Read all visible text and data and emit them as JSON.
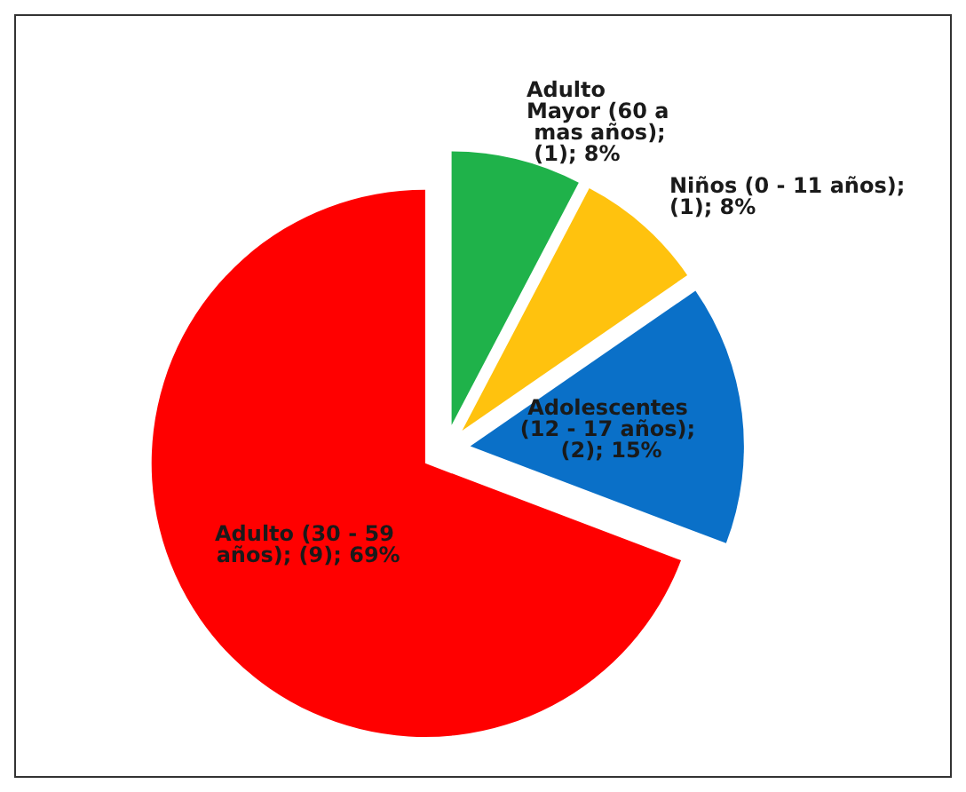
{
  "chart_data": {
    "type": "pie",
    "categories": [
      "Adulto Mayor (60 a mas años)",
      "Niños (0 - 11 años)",
      "Adolescentes (12 - 17 años)",
      "Adulto (30 - 59 años)"
    ],
    "values": [
      1,
      1,
      2,
      9
    ],
    "value_labels": [
      "; (1); 8%",
      "; (1); 8%",
      "; (2); 15%",
      "; (9); 69%"
    ],
    "colors": [
      "#1fb24a",
      "#ffc20e",
      "#0a70c8",
      "#ff0000"
    ],
    "legend": false
  }
}
